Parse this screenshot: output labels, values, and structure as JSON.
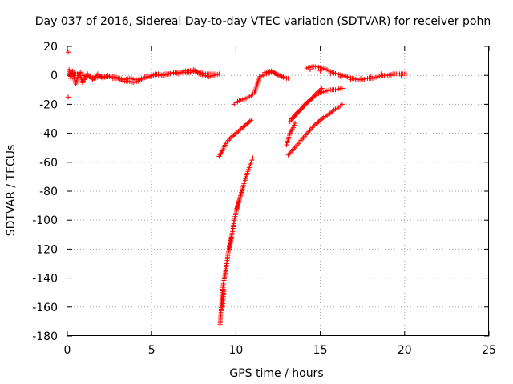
{
  "chart_data": {
    "type": "scatter",
    "title": "Day 037 of 2016, Sidereal Day-to-day VTEC variation (SDTVAR) for receiver pohn",
    "xlabel": "GPS time / hours",
    "ylabel": "SDTVAR / TECUs",
    "xlim": [
      0,
      25
    ],
    "ylim": [
      -180,
      20
    ],
    "xticks": [
      0,
      5,
      10,
      15,
      20,
      25
    ],
    "yticks": [
      20,
      0,
      -20,
      -40,
      -60,
      -80,
      -100,
      -120,
      -140,
      -160,
      -180
    ],
    "grid": true,
    "marker": "+",
    "color": "#ff0000",
    "series": [
      {
        "values": [
          [
            0.05,
            16
          ],
          [
            0.05,
            -15
          ],
          [
            0.1,
            4
          ],
          [
            0.2,
            -2
          ],
          [
            0.3,
            3
          ],
          [
            0.5,
            -6
          ],
          [
            0.7,
            2
          ],
          [
            0.9,
            -5
          ],
          [
            1.2,
            1
          ],
          [
            1.5,
            -3
          ],
          [
            1.8,
            1
          ],
          [
            2.1,
            -2
          ],
          [
            2.4,
            0
          ],
          [
            2.7,
            -2
          ],
          [
            3.0,
            -2
          ],
          [
            3.3,
            -4
          ],
          [
            3.6,
            -4
          ],
          [
            3.9,
            -5
          ],
          [
            4.2,
            -4
          ],
          [
            4.5,
            -2
          ],
          [
            4.8,
            -1
          ],
          [
            5.1,
            0
          ],
          [
            5.4,
            1
          ],
          [
            5.7,
            0
          ],
          [
            6.0,
            1
          ],
          [
            6.3,
            2
          ],
          [
            6.6,
            1
          ],
          [
            6.9,
            3
          ],
          [
            7.2,
            3
          ],
          [
            7.5,
            4
          ],
          [
            7.8,
            1
          ],
          [
            8.1,
            0
          ],
          [
            8.4,
            -1
          ],
          [
            8.7,
            0
          ],
          [
            9.0,
            1
          ],
          [
            0.2,
            2
          ],
          [
            0.4,
            1
          ],
          [
            0.6,
            1
          ],
          [
            0.8,
            2
          ],
          [
            1.0,
            0
          ],
          [
            1.3,
            -1
          ],
          [
            1.6,
            -2
          ],
          [
            1.9,
            -1
          ],
          [
            2.2,
            -1
          ],
          [
            2.5,
            -1
          ],
          [
            2.8,
            -1
          ],
          [
            3.1,
            -2
          ],
          [
            3.4,
            -3
          ],
          [
            3.7,
            -2
          ],
          [
            4.0,
            -3
          ],
          [
            4.3,
            -3
          ],
          [
            4.6,
            -1
          ],
          [
            4.9,
            -1
          ],
          [
            5.2,
            1
          ],
          [
            5.5,
            0
          ],
          [
            5.8,
            1
          ],
          [
            6.1,
            1
          ],
          [
            6.4,
            2
          ],
          [
            6.7,
            2
          ],
          [
            7.0,
            2
          ],
          [
            7.3,
            2
          ],
          [
            7.6,
            3
          ],
          [
            7.9,
            2
          ],
          [
            8.2,
            1
          ],
          [
            8.5,
            1
          ],
          [
            8.8,
            1
          ],
          [
            9.0,
            -56
          ],
          [
            9.2,
            -52
          ],
          [
            9.4,
            -47
          ],
          [
            9.7,
            -43
          ],
          [
            10.0,
            -40
          ],
          [
            10.3,
            -37
          ],
          [
            10.6,
            -34
          ],
          [
            10.9,
            -31
          ],
          [
            9.05,
            -173
          ],
          [
            9.1,
            -165
          ],
          [
            9.15,
            -158
          ],
          [
            9.2,
            -150
          ],
          [
            9.25,
            -144
          ],
          [
            9.35,
            -138
          ],
          [
            9.45,
            -130
          ],
          [
            9.55,
            -122
          ],
          [
            9.65,
            -115
          ],
          [
            9.8,
            -108
          ],
          [
            9.9,
            -100
          ],
          [
            10.0,
            -95
          ],
          [
            10.15,
            -88
          ],
          [
            10.3,
            -82
          ],
          [
            10.45,
            -76
          ],
          [
            10.6,
            -70
          ],
          [
            10.75,
            -65
          ],
          [
            10.9,
            -60
          ],
          [
            11.0,
            -57
          ],
          [
            9.2,
            -160
          ],
          [
            9.3,
            -148
          ],
          [
            9.4,
            -135
          ],
          [
            9.6,
            -120
          ],
          [
            9.75,
            -112
          ],
          [
            10.05,
            -92
          ],
          [
            10.35,
            -80
          ],
          [
            9.9,
            -20
          ],
          [
            10.1,
            -18
          ],
          [
            10.3,
            -17
          ],
          [
            10.6,
            -16
          ],
          [
            10.9,
            -14
          ],
          [
            11.1,
            -12
          ],
          [
            11.4,
            -1
          ],
          [
            11.6,
            0
          ],
          [
            11.8,
            1
          ],
          [
            12.0,
            2
          ],
          [
            12.2,
            2
          ],
          [
            12.4,
            1
          ],
          [
            12.6,
            0
          ],
          [
            12.8,
            -1
          ],
          [
            13.0,
            -2
          ],
          [
            13.1,
            -2
          ],
          [
            11.7,
            2
          ],
          [
            12.1,
            3
          ],
          [
            12.5,
            0
          ],
          [
            12.9,
            -2
          ],
          [
            13.0,
            -48
          ],
          [
            13.1,
            -44
          ],
          [
            13.2,
            -40
          ],
          [
            13.4,
            -36
          ],
          [
            13.5,
            -33
          ],
          [
            13.1,
            -55
          ],
          [
            13.4,
            -51
          ],
          [
            13.7,
            -47
          ],
          [
            14.0,
            -43
          ],
          [
            14.3,
            -39
          ],
          [
            14.6,
            -35
          ],
          [
            14.9,
            -32
          ],
          [
            15.2,
            -29
          ],
          [
            15.5,
            -27
          ],
          [
            15.8,
            -24
          ],
          [
            16.1,
            -22
          ],
          [
            16.3,
            -20
          ],
          [
            13.2,
            -32
          ],
          [
            13.5,
            -28
          ],
          [
            13.8,
            -24
          ],
          [
            14.1,
            -20
          ],
          [
            14.4,
            -17
          ],
          [
            14.7,
            -14
          ],
          [
            15.0,
            -12
          ],
          [
            15.3,
            -11
          ],
          [
            15.6,
            -10
          ],
          [
            15.9,
            -10
          ],
          [
            16.2,
            -9
          ],
          [
            16.3,
            -9
          ],
          [
            13.3,
            -30
          ],
          [
            13.6,
            -26
          ],
          [
            13.9,
            -23
          ],
          [
            14.2,
            -19
          ],
          [
            14.5,
            -16
          ],
          [
            14.8,
            -12
          ],
          [
            15.1,
            -9
          ],
          [
            14.2,
            5
          ],
          [
            14.5,
            6
          ],
          [
            14.8,
            6
          ],
          [
            15.1,
            5
          ],
          [
            15.4,
            4
          ],
          [
            15.7,
            2
          ],
          [
            16.0,
            1
          ],
          [
            16.3,
            0
          ],
          [
            16.6,
            -1
          ],
          [
            16.9,
            -2
          ],
          [
            17.2,
            -3
          ],
          [
            17.5,
            -3
          ],
          [
            17.8,
            -2
          ],
          [
            18.1,
            -2
          ],
          [
            18.4,
            -1
          ],
          [
            18.7,
            0
          ],
          [
            19.0,
            0
          ],
          [
            19.3,
            1
          ],
          [
            19.6,
            1
          ],
          [
            19.9,
            1
          ],
          [
            20.1,
            1
          ],
          [
            14.4,
            4
          ],
          [
            15.0,
            3
          ],
          [
            15.6,
            1
          ],
          [
            16.2,
            -1
          ],
          [
            16.8,
            -3
          ],
          [
            17.4,
            -2
          ],
          [
            18.0,
            -1
          ],
          [
            18.6,
            1
          ],
          [
            19.2,
            0
          ],
          [
            19.8,
            0
          ]
        ]
      }
    ]
  }
}
